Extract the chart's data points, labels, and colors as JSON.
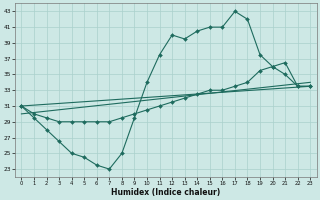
{
  "xlabel": "Humidex (Indice chaleur)",
  "background_color": "#cde8e5",
  "grid_color": "#aad0cc",
  "line_color": "#1e6b5e",
  "xlim": [
    -0.5,
    23.5
  ],
  "ylim": [
    22,
    44
  ],
  "yticks": [
    23,
    25,
    27,
    29,
    31,
    33,
    35,
    37,
    39,
    41,
    43
  ],
  "xticks": [
    0,
    1,
    2,
    3,
    4,
    5,
    6,
    7,
    8,
    9,
    10,
    11,
    12,
    13,
    14,
    15,
    16,
    17,
    18,
    19,
    20,
    21,
    22,
    23
  ],
  "line1_x": [
    0,
    1,
    2,
    3,
    4,
    5,
    6,
    7,
    8,
    9,
    10,
    11,
    12,
    13,
    14,
    15,
    16,
    17,
    18,
    19,
    20,
    21,
    22,
    23
  ],
  "line1_y": [
    31,
    29.5,
    28,
    26.5,
    25,
    24.5,
    23.5,
    23,
    25,
    29.5,
    34,
    37.5,
    40,
    39.5,
    40.5,
    41,
    41,
    43,
    42,
    37.5,
    36,
    35,
    33.5,
    33.5
  ],
  "line2_x": [
    0,
    1,
    2,
    3,
    4,
    5,
    6,
    7,
    8,
    9,
    10,
    11,
    12,
    13,
    14,
    15,
    16,
    17,
    18,
    19,
    20,
    21,
    22,
    23
  ],
  "line2_y": [
    31,
    30,
    29.5,
    29,
    29,
    29,
    29,
    29,
    29.5,
    30,
    30.5,
    31,
    31.5,
    32,
    32.5,
    33,
    33,
    33.5,
    34,
    35.5,
    36,
    36.5,
    33.5,
    33.5
  ],
  "line3_x": [
    0,
    23
  ],
  "line3_y": [
    30.0,
    34.0
  ],
  "line4_x": [
    0,
    23
  ],
  "line4_y": [
    31.0,
    33.5
  ]
}
